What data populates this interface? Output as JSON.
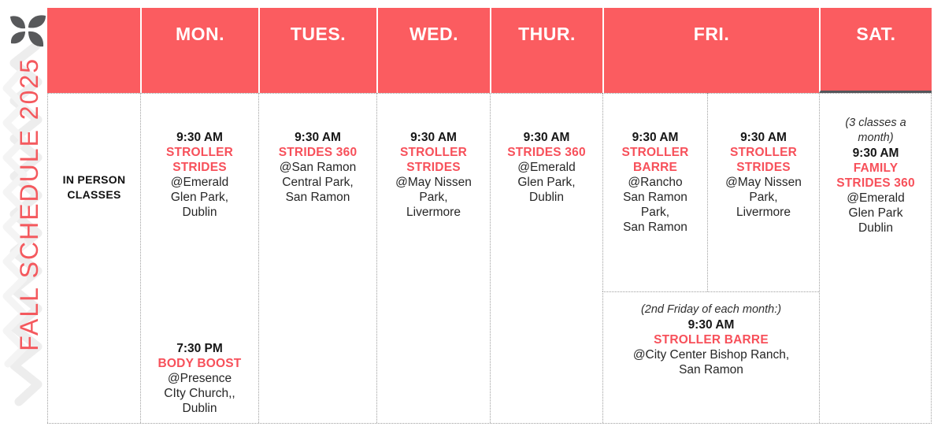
{
  "brand": {
    "logo_icon": "flower-icon"
  },
  "title": {
    "text": "FALL SCHEDULE 2025"
  },
  "colors": {
    "header_coral": "#fb5c60",
    "class_red": "#f7505a",
    "ink": "#161616",
    "logo_gray": "#58595b"
  },
  "header": {
    "days": [
      "MON.",
      "TUES.",
      "WED.",
      "THUR.",
      "FRI.",
      "SAT."
    ]
  },
  "row_label": "IN PERSON\nCLASSES",
  "cells": {
    "mon_am": {
      "time": "9:30 AM",
      "name": "STROLLER\nSTRIDES",
      "location": "@Emerald\nGlen Park,\nDublin"
    },
    "tue_am": {
      "time": "9:30 AM",
      "name": "STRIDES 360",
      "location": "@San Ramon\nCentral Park,\nSan Ramon"
    },
    "wed_am": {
      "time": "9:30 AM",
      "name": "STROLLER\nSTRIDES",
      "location": "@May Nissen\nPark,\nLivermore"
    },
    "thu_am": {
      "time": "9:30 AM",
      "name": "STRIDES 360",
      "location": "@Emerald\nGlen Park,\nDublin"
    },
    "fri_am_left": {
      "time": "9:30 AM",
      "name": "STROLLER\nBARRE",
      "location": "@Rancho\nSan Ramon\nPark,\nSan Ramon"
    },
    "fri_am_right": {
      "time": "9:30 AM",
      "name": "STROLLER\nSTRIDES",
      "location": "@May Nissen\nPark,\nLivermore"
    },
    "sat_am": {
      "note": "(3 classes a\nmonth)",
      "time": "9:30 AM",
      "name": "FAMILY\nSTRIDES 360",
      "location": "@Emerald\nGlen Park\nDublin"
    },
    "mon_pm": {
      "time": "7:30 PM",
      "name": "BODY BOOST",
      "location": "@Presence\nCIty Church,,\nDublin"
    },
    "fri_monthly": {
      "note": "(2nd Friday of each month:)",
      "time": "9:30 AM",
      "name": "STROLLER BARRE",
      "location": "@City Center Bishop Ranch,\nSan Ramon"
    }
  }
}
